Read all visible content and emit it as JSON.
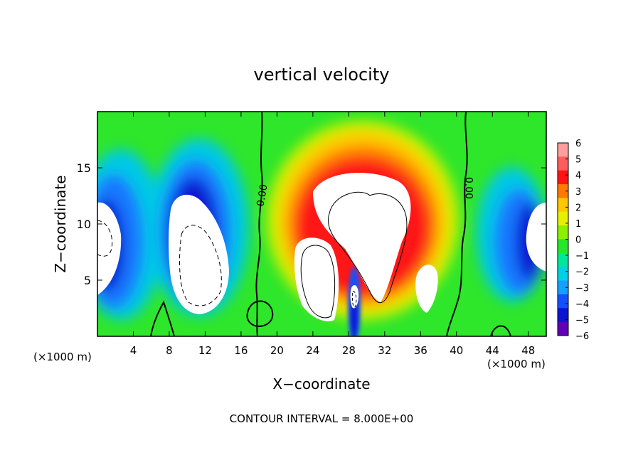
{
  "chart_data": {
    "type": "heatmap",
    "title": "vertical velocity",
    "xlabel": "X−coordinate",
    "ylabel": "Z−coordinate",
    "x_unit_label": "(×1000 m)",
    "x_unit_label_right": "(×1000 m)",
    "xlim": [
      0,
      50
    ],
    "ylim": [
      0,
      20
    ],
    "x_ticks": [
      4,
      8,
      12,
      16,
      20,
      24,
      28,
      32,
      36,
      40,
      44,
      48
    ],
    "y_ticks": [
      5,
      10,
      15
    ],
    "footer": "CONTOUR INTERVAL = 8.000E+00",
    "contour_labels": [
      {
        "text": "0.00",
        "x": 18.7,
        "y": 12.5
      },
      {
        "text": "0.00",
        "x": 41.0,
        "y": 13.2
      }
    ],
    "colorbar": {
      "ticks": [
        "6",
        "5",
        "4",
        "3",
        "2",
        "1",
        "0",
        "−1",
        "−2",
        "−3",
        "−4",
        "−5",
        "−6"
      ],
      "colors": [
        "#ff9e9e",
        "#ff5c5c",
        "#ff1414",
        "#ff7a00",
        "#ffc800",
        "#e6f000",
        "#8cf000",
        "#28e628",
        "#00e69a",
        "#00d2e6",
        "#14a0ff",
        "#1450ff",
        "#0a14d2",
        "#6400b4"
      ]
    },
    "features": [
      {
        "kind": "updraft",
        "x": 29,
        "z": 11,
        "value": 6
      },
      {
        "kind": "updraft",
        "x": 24.5,
        "z": 6,
        "value": 6
      },
      {
        "kind": "updraft",
        "x": 36,
        "z": 4.5,
        "value": 5
      },
      {
        "kind": "downdraft",
        "x": 10.5,
        "z": 7,
        "value": -6
      },
      {
        "kind": "downdraft",
        "x": 1,
        "z": 8.5,
        "value": -6
      },
      {
        "kind": "downdraft",
        "x": 48.5,
        "z": 8,
        "value": -6
      },
      {
        "kind": "downdraft",
        "x": 28.7,
        "z": 2,
        "value": -6
      }
    ]
  }
}
